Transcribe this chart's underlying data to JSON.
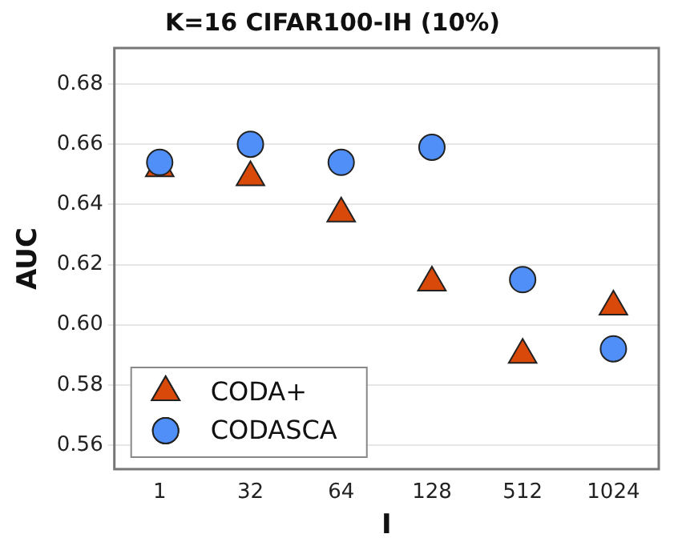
{
  "chart_data": {
    "type": "scatter",
    "title": "K=16 CIFAR100-IH (10%)",
    "xlabel": "I",
    "ylabel": "AUC",
    "categories": [
      "1",
      "32",
      "64",
      "128",
      "512",
      "1024"
    ],
    "series": [
      {
        "name": "CODA+",
        "color": "#d94a0a",
        "marker": "triangle",
        "values": [
          0.652,
          0.649,
          0.637,
          0.614,
          0.59,
          0.606
        ]
      },
      {
        "name": "CODASCA",
        "color": "#4f8ff7",
        "marker": "circle",
        "values": [
          0.654,
          0.66,
          0.654,
          0.659,
          0.615,
          0.592
        ]
      }
    ],
    "ylim": [
      0.552,
      0.692
    ],
    "yticks": [
      {
        "value": 0.56,
        "label": "0.56"
      },
      {
        "value": 0.58,
        "label": "0.58"
      },
      {
        "value": 0.6,
        "label": "0.60"
      },
      {
        "value": 0.62,
        "label": "0.62"
      },
      {
        "value": 0.64,
        "label": "0.64"
      },
      {
        "value": 0.66,
        "label": "0.66"
      },
      {
        "value": 0.68,
        "label": "0.68"
      }
    ],
    "grid": "y",
    "legend": "bottom left"
  }
}
